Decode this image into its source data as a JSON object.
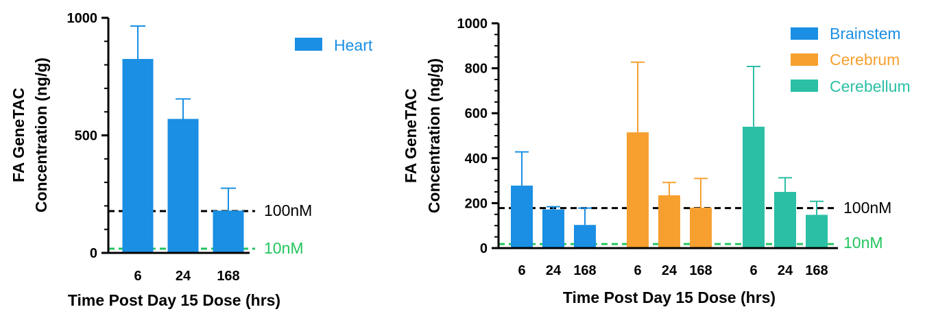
{
  "colors": {
    "heart": "#1a8fe3",
    "brainstem": "#1a8fe3",
    "cerebrum": "#f7a030",
    "cerebellum": "#2bbfa5",
    "ref_100nM": "#000000",
    "ref_10nM": "#22c55e"
  },
  "chart_data": [
    {
      "type": "bar",
      "ylabel_line1": "FA GeneTAC",
      "ylabel_line2": "Concentration (ng/g)",
      "xlabel": "Time Post Day 15 Dose (hrs)",
      "ylim": [
        0,
        1000
      ],
      "yticks": [
        "0",
        "500",
        "1000"
      ],
      "categories": [
        "6",
        "24",
        "168"
      ],
      "series": [
        {
          "name": "Heart",
          "color_key": "heart",
          "values": [
            825,
            570,
            180
          ],
          "errors": [
            140,
            85,
            95
          ]
        }
      ],
      "reference_lines": [
        {
          "label": "100nM",
          "value": 178,
          "style": "dashed",
          "color_key": "ref_100nM"
        },
        {
          "label": "10nM",
          "value": 18,
          "style": "dashed",
          "color_key": "ref_10nM"
        }
      ],
      "legend_position": "top-right"
    },
    {
      "type": "bar",
      "ylabel_line1": "FA GeneTAC",
      "ylabel_line2": "Concentration (ng/g)",
      "xlabel": "Time Post Day 15 Dose (hrs)",
      "ylim": [
        0,
        1000
      ],
      "yticks": [
        "0",
        "200",
        "400",
        "600",
        "800",
        "1000"
      ],
      "categories": [
        "6",
        "24",
        "168"
      ],
      "series": [
        {
          "name": "Brainstem",
          "color_key": "brainstem",
          "values": [
            278,
            172,
            103
          ],
          "errors": [
            150,
            12,
            75
          ]
        },
        {
          "name": "Cerebrum",
          "color_key": "cerebrum",
          "values": [
            515,
            235,
            180
          ],
          "errors": [
            312,
            57,
            130
          ]
        },
        {
          "name": "Cerebellum",
          "color_key": "cerebellum",
          "values": [
            540,
            250,
            148
          ],
          "errors": [
            268,
            63,
            60
          ]
        }
      ],
      "reference_lines": [
        {
          "label": "100nM",
          "value": 178,
          "style": "dashed",
          "color_key": "ref_100nM"
        },
        {
          "label": "10nM",
          "value": 18,
          "style": "dashed",
          "color_key": "ref_10nM"
        }
      ],
      "legend_position": "top-right"
    }
  ]
}
